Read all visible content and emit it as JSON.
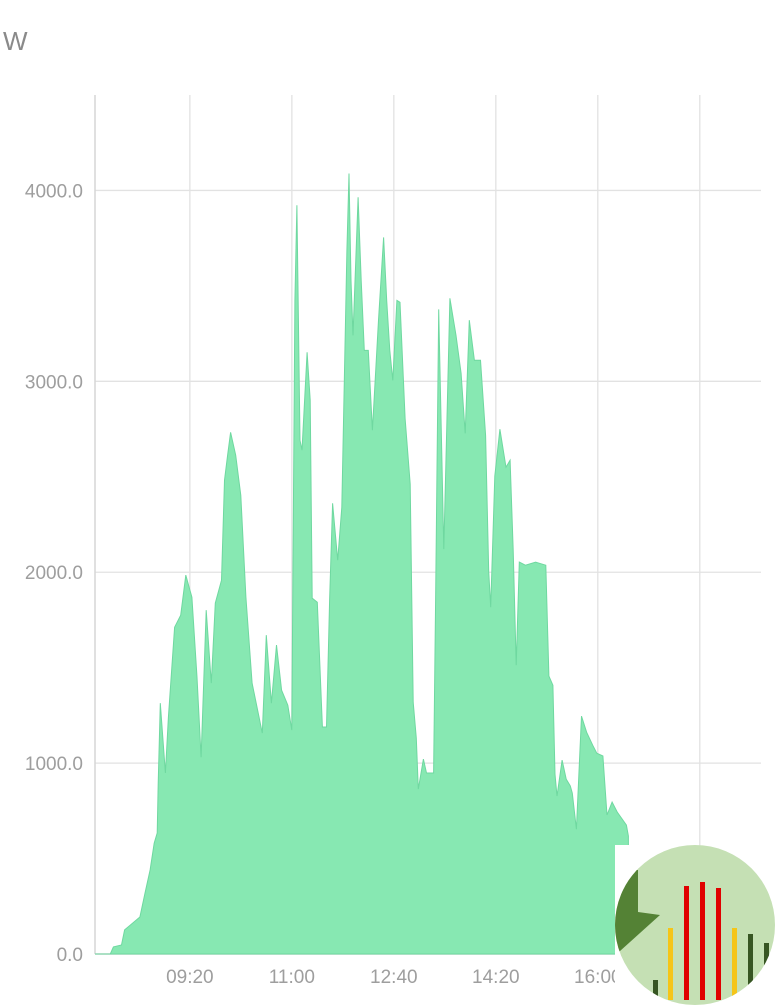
{
  "chart_data": {
    "type": "area",
    "title": "",
    "xlabel": "",
    "ylabel": "W",
    "ylim": [
      0,
      4500
    ],
    "xlim": [
      "07:47",
      "18:40"
    ],
    "grid": true,
    "y_ticks": [
      "0.0",
      "1000.0",
      "2000.0",
      "3000.0",
      "4000.0"
    ],
    "x_ticks": [
      "09:20",
      "11:00",
      "12:40",
      "14:20",
      "16:00"
    ],
    "x_gridlines": [
      "09:20",
      "11:00",
      "12:40",
      "14:20",
      "16:00",
      "17:40"
    ],
    "colors": {
      "fill": "#87e8b2",
      "line": "#6fd8a0",
      "grid": "#e2e2e2",
      "tick_text": "#9e9e9e"
    },
    "points": [
      [
        "07:47",
        0
      ],
      [
        "08:02",
        0
      ],
      [
        "08:05",
        37
      ],
      [
        "08:13",
        47
      ],
      [
        "08:16",
        126
      ],
      [
        "08:31",
        194
      ],
      [
        "08:36",
        319
      ],
      [
        "08:41",
        440
      ],
      [
        "08:45",
        581
      ],
      [
        "08:48",
        634
      ],
      [
        "08:49",
        895
      ],
      [
        "08:51",
        1314
      ],
      [
        "08:56",
        948
      ],
      [
        "08:59",
        1241
      ],
      [
        "09:05",
        1712
      ],
      [
        "09:11",
        1775
      ],
      [
        "09:16",
        1985
      ],
      [
        "09:22",
        1869
      ],
      [
        "09:27",
        1450
      ],
      [
        "09:31",
        1031
      ],
      [
        "09:36",
        1801
      ],
      [
        "09:41",
        1419
      ],
      [
        "09:45",
        1838
      ],
      [
        "09:51",
        1958
      ],
      [
        "09:54",
        2482
      ],
      [
        "09:57",
        2613
      ],
      [
        "10:00",
        2733
      ],
      [
        "10:05",
        2613
      ],
      [
        "10:10",
        2403
      ],
      [
        "10:15",
        1870
      ],
      [
        "10:21",
        1419
      ],
      [
        "10:31",
        1157
      ],
      [
        "10:35",
        1670
      ],
      [
        "10:40",
        1314
      ],
      [
        "10:45",
        1618
      ],
      [
        "10:50",
        1382
      ],
      [
        "10:56",
        1304
      ],
      [
        "11:00",
        1173
      ],
      [
        "11:03",
        3424
      ],
      [
        "11:05",
        3922
      ],
      [
        "11:08",
        2691
      ],
      [
        "11:10",
        2639
      ],
      [
        "11:15",
        3152
      ],
      [
        "11:18",
        2901
      ],
      [
        "11:20",
        1864
      ],
      [
        "11:25",
        1843
      ],
      [
        "11:30",
        1189
      ],
      [
        "11:34",
        1189
      ],
      [
        "11:37",
        1853
      ],
      [
        "11:40",
        2361
      ],
      [
        "11:45",
        2063
      ],
      [
        "11:49",
        2340
      ],
      [
        "11:54",
        3686
      ],
      [
        "11:56",
        4089
      ],
      [
        "11:58",
        3529
      ],
      [
        "12:00",
        3241
      ],
      [
        "12:05",
        3964
      ],
      [
        "12:08",
        3529
      ],
      [
        "12:11",
        3162
      ],
      [
        "12:15",
        3162
      ],
      [
        "12:19",
        2744
      ],
      [
        "12:25",
        3320
      ],
      [
        "12:30",
        3754
      ],
      [
        "12:33",
        3424
      ],
      [
        "12:36",
        3162
      ],
      [
        "12:39",
        3005
      ],
      [
        "12:43",
        3424
      ],
      [
        "12:46",
        3414
      ],
      [
        "12:51",
        2806
      ],
      [
        "12:56",
        2461
      ],
      [
        "12:59",
        1319
      ],
      [
        "13:02",
        1131
      ],
      [
        "13:04",
        864
      ],
      [
        "13:09",
        1021
      ],
      [
        "13:12",
        948
      ],
      [
        "13:19",
        948
      ],
      [
        "13:21",
        1854
      ],
      [
        "13:24",
        3377
      ],
      [
        "13:29",
        2121
      ],
      [
        "13:35",
        3435
      ],
      [
        "13:41",
        3241
      ],
      [
        "13:46",
        3042
      ],
      [
        "13:50",
        2728
      ],
      [
        "13:54",
        3320
      ],
      [
        "13:59",
        3110
      ],
      [
        "14:05",
        3110
      ],
      [
        "14:10",
        2717
      ],
      [
        "14:13",
        2005
      ],
      [
        "14:15",
        1817
      ],
      [
        "14:19",
        2503
      ],
      [
        "14:24",
        2749
      ],
      [
        "14:30",
        2550
      ],
      [
        "14:34",
        2587
      ],
      [
        "14:37",
        2115
      ],
      [
        "14:40",
        1513
      ],
      [
        "14:43",
        2053
      ],
      [
        "14:49",
        2037
      ],
      [
        "14:59",
        2053
      ],
      [
        "15:09",
        2037
      ],
      [
        "15:12",
        1456
      ],
      [
        "15:16",
        1408
      ],
      [
        "15:18",
        942
      ],
      [
        "15:20",
        827
      ],
      [
        "15:25",
        1016
      ],
      [
        "15:29",
        916
      ],
      [
        "15:33",
        880
      ],
      [
        "15:35",
        843
      ],
      [
        "15:39",
        654
      ],
      [
        "15:44",
        1246
      ],
      [
        "15:49",
        1162
      ],
      [
        "15:55",
        1094
      ],
      [
        "15:59",
        1052
      ],
      [
        "16:05",
        1037
      ],
      [
        "16:09",
        728
      ],
      [
        "16:14",
        796
      ],
      [
        "16:19",
        744
      ],
      [
        "16:28",
        675
      ],
      [
        "16:30",
        618
      ]
    ]
  },
  "overlay": {
    "icon": "app-icon-bar-chart",
    "colors": {
      "bg": "#c5e0b4",
      "wedge": "#548235",
      "red": "#e00000",
      "yellow": "#f5c518",
      "dark": "#375623"
    }
  }
}
